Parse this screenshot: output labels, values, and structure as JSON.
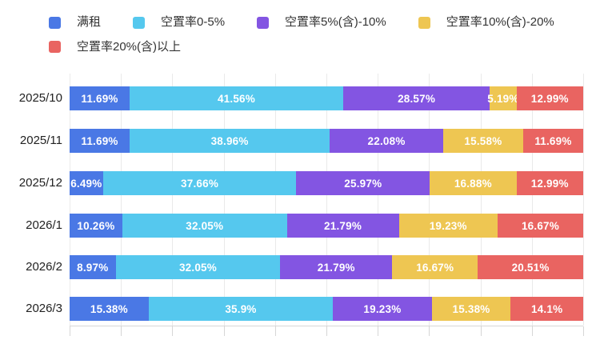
{
  "chart_data": {
    "type": "bar",
    "orientation": "horizontal",
    "stacked": true,
    "title": "",
    "xlabel": "",
    "ylabel": "",
    "xlim": [
      0,
      100
    ],
    "x_tick_interval": 10,
    "grid": true,
    "legend_position": "top",
    "value_unit": "%",
    "categories": [
      "2025/10",
      "2025/11",
      "2025/12",
      "2026/1",
      "2026/2",
      "2026/3"
    ],
    "series": [
      {
        "name": "满租",
        "color": "#4a78e5",
        "values": [
          11.69,
          11.69,
          6.49,
          10.26,
          8.97,
          15.38
        ],
        "labels": [
          "11.69%",
          "11.69%",
          "6.49%",
          "10.26%",
          "8.97%",
          "15.38%"
        ]
      },
      {
        "name": "空置率0-5%",
        "color": "#55c8ee",
        "values": [
          41.56,
          38.96,
          37.66,
          32.05,
          32.05,
          35.9
        ],
        "labels": [
          "41.56%",
          "38.96%",
          "37.66%",
          "32.05%",
          "32.05%",
          "35.9%"
        ]
      },
      {
        "name": "空置率5%(含)-10%",
        "color": "#8355e2",
        "values": [
          28.57,
          22.08,
          25.97,
          21.79,
          21.79,
          19.23
        ],
        "labels": [
          "28.57%",
          "22.08%",
          "25.97%",
          "21.79%",
          "21.79%",
          "19.23%"
        ]
      },
      {
        "name": "空置率10%(含)-20%",
        "color": "#eec652",
        "values": [
          5.19,
          15.58,
          16.88,
          19.23,
          16.67,
          15.38
        ],
        "labels": [
          "5.19%",
          "15.58%",
          "16.88%",
          "19.23%",
          "16.67%",
          "15.38%"
        ]
      },
      {
        "name": "空置率20%(含)以上",
        "color": "#e96461",
        "values": [
          12.99,
          11.69,
          12.99,
          16.67,
          20.51,
          14.1
        ],
        "labels": [
          "12.99%",
          "11.69%",
          "12.99%",
          "16.67%",
          "20.51%",
          "14.1%"
        ]
      }
    ]
  },
  "colors": {
    "gridline": "#eaeaea",
    "axis": "#d6d6d6",
    "category_text": "#222222",
    "legend_text": "#333333",
    "bar_label_text": "#ffffff",
    "background": "#ffffff"
  }
}
